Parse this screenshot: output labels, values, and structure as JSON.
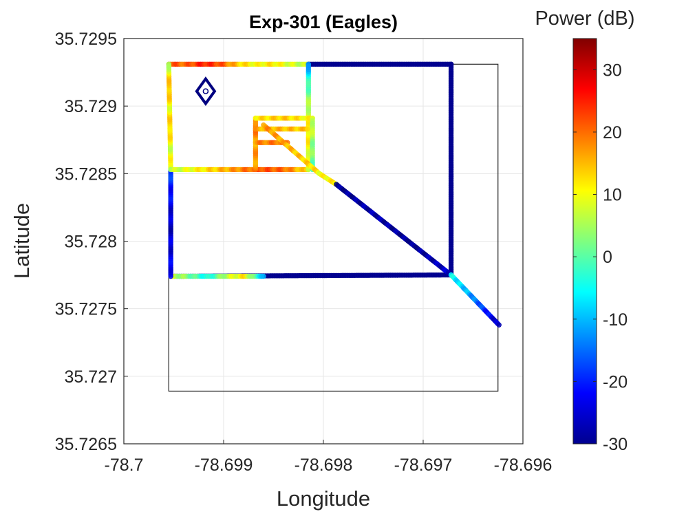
{
  "chart_data": {
    "type": "scatter",
    "title": "Exp-301 (Eagles)",
    "xlabel": "Longitude",
    "ylabel": "Latitude",
    "xlim": [
      -78.7,
      -78.696
    ],
    "ylim": [
      35.7265,
      35.7295
    ],
    "xticks": [
      -78.7,
      -78.699,
      -78.698,
      -78.697,
      -78.696
    ],
    "xtick_labels": [
      "-78.7",
      "-78.699",
      "-78.698",
      "-78.697",
      "-78.696"
    ],
    "yticks": [
      35.7265,
      35.727,
      35.7275,
      35.728,
      35.7285,
      35.729,
      35.7295
    ],
    "ytick_labels": [
      "35.7265",
      "35.727",
      "35.7275",
      "35.728",
      "35.7285",
      "35.729",
      "35.7295"
    ],
    "grid": true,
    "colorbar": {
      "label": "Power (dB)",
      "colormap": "jet",
      "clim": [
        -30,
        35
      ],
      "ticks": [
        -30,
        -20,
        -10,
        0,
        10,
        20,
        30
      ],
      "tick_labels": [
        "-30",
        "-20",
        "-10",
        "0",
        "10",
        "20",
        "30"
      ]
    },
    "boundary_box": {
      "lon": [
        -78.69955,
        -78.69625
      ],
      "lat": [
        35.72689,
        35.72931
      ]
    },
    "transmitter_marker": {
      "lon": -78.69918,
      "lat": 35.72911,
      "color": "#000080"
    },
    "segments": [
      {
        "lon1": -78.69955,
        "lat1": 35.72931,
        "lon2": -78.69815,
        "lat2": 35.72931,
        "power": [
          22,
          20,
          25,
          22,
          14,
          10,
          12,
          8,
          6
        ]
      },
      {
        "lon1": -78.69815,
        "lat1": 35.72931,
        "lon2": -78.69672,
        "lat2": 35.72931,
        "power": [
          -29
        ]
      },
      {
        "lon1": -78.69672,
        "lat1": 35.72931,
        "lon2": -78.69672,
        "lat2": 35.72775,
        "power": [
          -29
        ]
      },
      {
        "lon1": -78.69672,
        "lat1": 35.72775,
        "lon2": -78.69953,
        "lat2": 35.72774,
        "power": [
          -29
        ]
      },
      {
        "lon1": -78.69953,
        "lat1": 35.72774,
        "lon2": -78.6986,
        "lat2": 35.72774,
        "power": [
          8,
          2,
          -5,
          6,
          12,
          -10
        ]
      },
      {
        "lon1": -78.69953,
        "lat1": 35.72774,
        "lon2": -78.69953,
        "lat2": 35.72853,
        "power": [
          -22,
          -26,
          -18
        ]
      },
      {
        "lon1": -78.69953,
        "lat1": 35.72853,
        "lon2": -78.69955,
        "lat2": 35.72931,
        "power": [
          12,
          8,
          14,
          10,
          16,
          6
        ]
      },
      {
        "lon1": -78.69953,
        "lat1": 35.72853,
        "lon2": -78.69815,
        "lat2": 35.72853,
        "power": [
          6,
          10,
          14,
          18,
          22,
          20,
          12
        ]
      },
      {
        "lon1": -78.69815,
        "lat1": 35.72853,
        "lon2": -78.69815,
        "lat2": 35.72931,
        "power": [
          8,
          10,
          12,
          6,
          0,
          -12
        ]
      },
      {
        "lon1": -78.69868,
        "lat1": 35.72853,
        "lon2": -78.69868,
        "lat2": 35.72891,
        "power": [
          18,
          16,
          20
        ]
      },
      {
        "lon1": -78.69868,
        "lat1": 35.72891,
        "lon2": -78.69811,
        "lat2": 35.72891,
        "power": [
          12,
          14,
          10
        ]
      },
      {
        "lon1": -78.69811,
        "lat1": 35.72891,
        "lon2": -78.69811,
        "lat2": 35.72853,
        "power": [
          8,
          4,
          0
        ]
      },
      {
        "lon1": -78.69868,
        "lat1": 35.72873,
        "lon2": -78.69836,
        "lat2": 35.72873,
        "power": [
          18,
          20
        ]
      },
      {
        "lon1": -78.69868,
        "lat1": 35.72883,
        "lon2": -78.69816,
        "lat2": 35.72883,
        "power": [
          16,
          14
        ]
      },
      {
        "lon1": -78.6986,
        "lat1": 35.72886,
        "lon2": -78.69804,
        "lat2": 35.7285,
        "power": [
          18,
          16,
          14,
          12
        ]
      },
      {
        "lon1": -78.69804,
        "lat1": 35.7285,
        "lon2": -78.69787,
        "lat2": 35.72842,
        "power": [
          10,
          12
        ]
      },
      {
        "lon1": -78.69787,
        "lat1": 35.72842,
        "lon2": -78.69672,
        "lat2": 35.72775,
        "power": [
          -29,
          -27,
          -29,
          -25
        ]
      },
      {
        "lon1": -78.69672,
        "lat1": 35.72775,
        "lon2": -78.69624,
        "lat2": 35.72738,
        "power": [
          -5,
          -10,
          -18,
          -27
        ]
      }
    ]
  }
}
